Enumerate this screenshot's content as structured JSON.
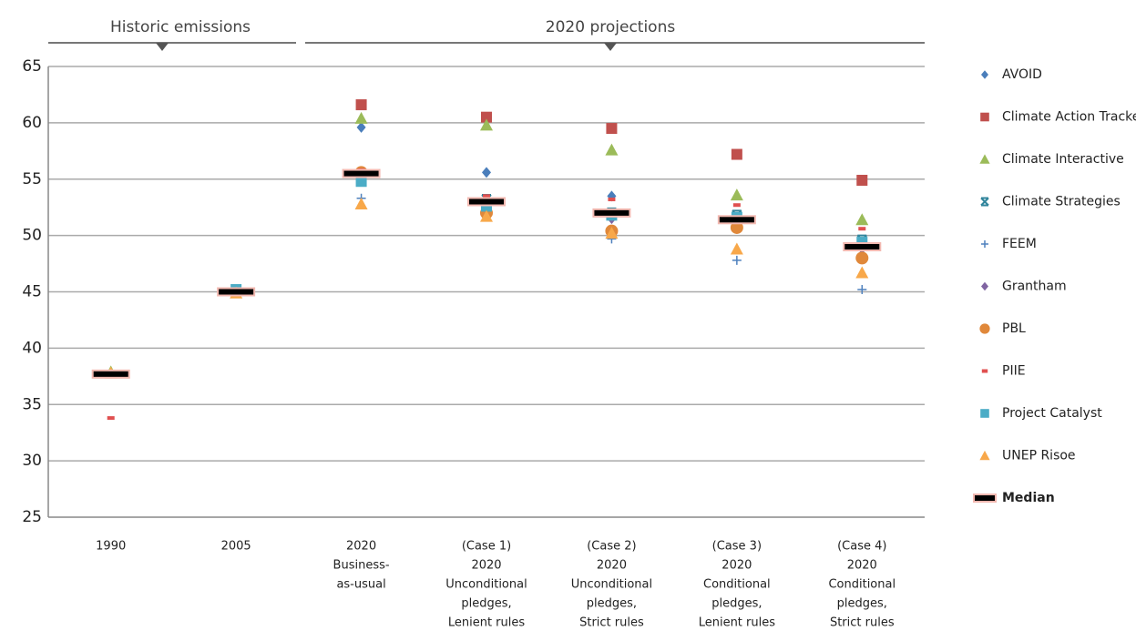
{
  "chart_data": {
    "type": "dot",
    "groups": [
      "Historic emissions",
      "2020 projections"
    ],
    "categories": [
      [
        "1990"
      ],
      [
        "2005"
      ],
      [
        "2020",
        "Business-",
        "as-usual"
      ],
      [
        "(Case 1)",
        "2020",
        "Unconditional",
        "pledges,",
        "Lenient rules"
      ],
      [
        "(Case 2)",
        "2020",
        "Unconditional",
        "pledges,",
        "Strict rules"
      ],
      [
        "(Case 3)",
        "2020",
        "Conditional",
        "pledges,",
        "Lenient rules"
      ],
      [
        "(Case 4)",
        "2020",
        "Conditional",
        "pledges,",
        "Strict rules"
      ]
    ],
    "ylim": [
      25,
      65
    ],
    "yticks": [
      25,
      30,
      35,
      40,
      45,
      50,
      55,
      60,
      65
    ],
    "grid": true,
    "series": [
      {
        "name": "AVOID",
        "color": "#4a7ebb",
        "marker": "diamond",
        "values": [
          null,
          null,
          59.6,
          55.6,
          53.5,
          51.3,
          49.2
        ]
      },
      {
        "name": "Climate Action Tracker",
        "color": "#c0504d",
        "marker": "square",
        "values": [
          null,
          null,
          61.6,
          60.5,
          59.5,
          57.2,
          54.9
        ]
      },
      {
        "name": "Climate Interactive",
        "color": "#9bbb59",
        "marker": "triangle",
        "values": [
          37.9,
          null,
          60.4,
          59.8,
          57.6,
          53.6,
          51.4
        ]
      },
      {
        "name": "Climate Strategies",
        "color": "#31859c",
        "marker": "x",
        "values": [
          null,
          null,
          55.0,
          53.2,
          52.0,
          51.8,
          49.6
        ]
      },
      {
        "name": "FEEM",
        "color": "#4f81bd",
        "marker": "plus",
        "values": [
          null,
          null,
          53.3,
          52.1,
          49.7,
          47.8,
          45.2
        ]
      },
      {
        "name": "Grantham",
        "color": "#8064a2",
        "marker": "diamond",
        "values": [
          null,
          null,
          55.3,
          53.0,
          51.5,
          51.0,
          48.3
        ]
      },
      {
        "name": "PBL",
        "color": "#e0883a",
        "marker": "circle",
        "values": [
          null,
          null,
          55.6,
          52.0,
          50.4,
          50.7,
          48.0
        ]
      },
      {
        "name": "PIIE",
        "color": "#e05050",
        "marker": "dash",
        "values": [
          33.8,
          null,
          55.8,
          53.5,
          53.2,
          52.7,
          50.6
        ]
      },
      {
        "name": "Project Catalyst",
        "color": "#4bacc6",
        "marker": "square",
        "values": [
          null,
          45.2,
          54.8,
          52.6,
          51.8,
          51.6,
          49.4
        ]
      },
      {
        "name": "UNEP Risoe",
        "color": "#f8a84a",
        "marker": "triangle",
        "values": [
          37.8,
          44.9,
          52.8,
          51.7,
          50.2,
          48.8,
          46.7
        ]
      },
      {
        "name": "Median",
        "color": "#000000",
        "marker": "bar",
        "values": [
          37.7,
          45.0,
          55.5,
          53.0,
          52.0,
          51.4,
          49.0
        ]
      }
    ]
  }
}
